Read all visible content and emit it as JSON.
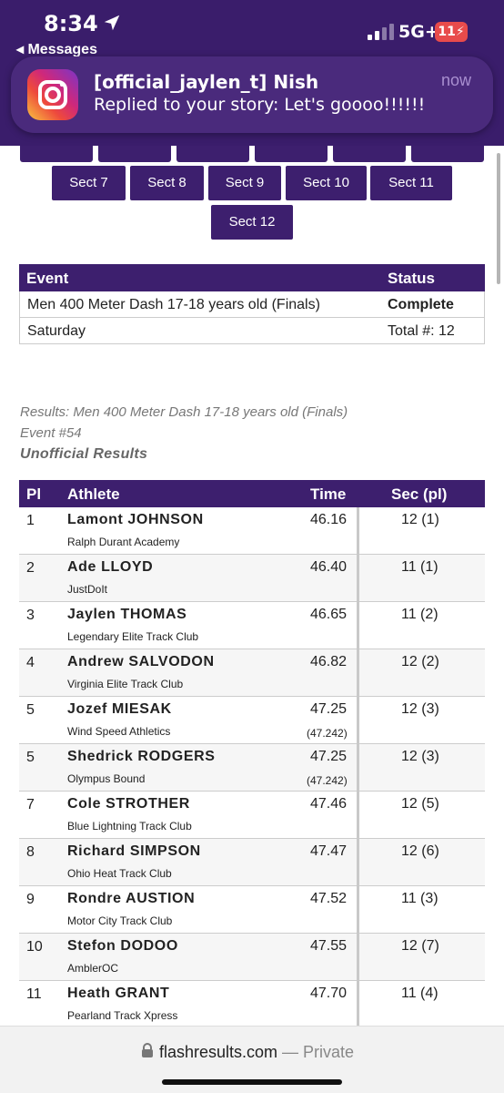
{
  "status_bar": {
    "time": "8:34",
    "back_app": "◂ Messages",
    "network": "5G+",
    "battery": "11"
  },
  "notification": {
    "app_icon": "instagram-icon",
    "title": "[official_jaylen_t] Nish",
    "body": "Replied to your story: Let's goooo!!!!!!",
    "time": "now"
  },
  "sections": [
    "Sect 7",
    "Sect 8",
    "Sect 9",
    "Sect 10",
    "Sect 11",
    "Sect 12"
  ],
  "event_table": {
    "header_event": "Event",
    "header_status": "Status",
    "event_name": "Men 400 Meter Dash 17-18 years old (Finals)",
    "status": "Complete",
    "day": "Saturday",
    "total": "Total #: 12"
  },
  "results_caption": {
    "line1": "Results: Men 400 Meter Dash 17-18 years old (Finals)",
    "line2": "Event #54",
    "line3": "Unofficial Results"
  },
  "results": {
    "headers": {
      "pl": "Pl",
      "athlete": "Athlete",
      "time": "Time",
      "sec": "Sec (pl)"
    },
    "rows": [
      {
        "pl": "1",
        "name": "Lamont JOHNSON",
        "team": "Ralph Durant Academy",
        "time": "46.16",
        "sub": "",
        "sec": "12 (1)"
      },
      {
        "pl": "2",
        "name": "Ade LLOYD",
        "team": "JustDoIt",
        "time": "46.40",
        "sub": "",
        "sec": "11 (1)"
      },
      {
        "pl": "3",
        "name": "Jaylen THOMAS",
        "team": "Legendary Elite Track Club",
        "time": "46.65",
        "sub": "",
        "sec": "11 (2)"
      },
      {
        "pl": "4",
        "name": "Andrew SALVODON",
        "team": "Virginia Elite Track Club",
        "time": "46.82",
        "sub": "",
        "sec": "12 (2)"
      },
      {
        "pl": "5",
        "name": "Jozef MIESAK",
        "team": "Wind Speed Athletics",
        "time": "47.25",
        "sub": "(47.242)",
        "sec": "12 (3)"
      },
      {
        "pl": "5",
        "name": "Shedrick RODGERS",
        "team": "Olympus Bound",
        "time": "47.25",
        "sub": "(47.242)",
        "sec": "12 (3)"
      },
      {
        "pl": "7",
        "name": "Cole STROTHER",
        "team": "Blue Lightning Track Club",
        "time": "47.46",
        "sub": "",
        "sec": "12 (5)"
      },
      {
        "pl": "8",
        "name": "Richard SIMPSON",
        "team": "Ohio Heat Track Club",
        "time": "47.47",
        "sub": "",
        "sec": "12 (6)"
      },
      {
        "pl": "9",
        "name": "Rondre AUSTION",
        "team": "Motor City Track Club",
        "time": "47.52",
        "sub": "",
        "sec": "11 (3)"
      },
      {
        "pl": "10",
        "name": "Stefon DODOO",
        "team": "AmblerOC",
        "time": "47.55",
        "sub": "",
        "sec": "12 (7)"
      },
      {
        "pl": "11",
        "name": "Heath GRANT",
        "team": "Pearland Track Xpress",
        "time": "47.70",
        "sub": "",
        "sec": "11 (4)"
      }
    ]
  },
  "url_bar": {
    "domain": "flashresults.com",
    "mode": " — Private"
  }
}
